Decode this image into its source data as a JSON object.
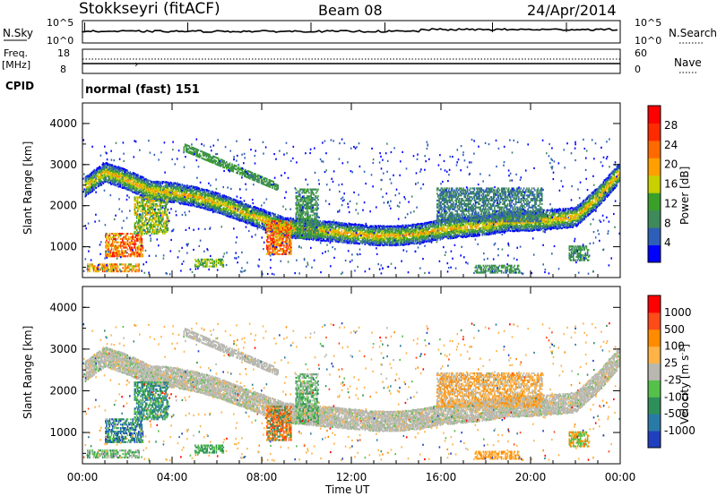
{
  "header": {
    "station": "Stokkseyri (fitACF)",
    "beam": "Beam 08",
    "date": "24/Apr/2014"
  },
  "strips": {
    "nsky_label": "N.Sky",
    "nsky_ticks": [
      "10^5",
      "10^0"
    ],
    "nsearch_label": "N.Search",
    "freq_label_1": "Freq.",
    "freq_label_2": "[MHz]",
    "freq_ticks": [
      "18",
      "8"
    ],
    "nave_ticks": [
      "60",
      "0"
    ],
    "nave_label": "Nave",
    "cpid_label": "CPID",
    "cpid_text": "normal (fast) 151"
  },
  "colors": {
    "power_scale": [
      "#0000ff",
      "#2e5fb8",
      "#3f8a5a",
      "#3aa02a",
      "#c8d000",
      "#ffa000",
      "#ff6a00",
      "#ff2a00",
      "#ff0000"
    ],
    "velocity_scale": [
      "#1f3fbf",
      "#2a7aa8",
      "#2f8f5a",
      "#55c04a",
      "#b8b8b0",
      "#ffb347",
      "#ff8c00",
      "#ff4a1a",
      "#ff0000"
    ]
  },
  "chart_data": [
    {
      "type": "heatmap",
      "panel": "power",
      "ylabel": "Slant Range [km]",
      "yticks": [
        "4000",
        "3000",
        "2000",
        "1000"
      ],
      "ylim": [
        250,
        4500
      ],
      "colorbar_label": "Power [dB]",
      "colorbar_ticks": [
        "28",
        "24",
        "20",
        "16",
        "12",
        "8",
        "4"
      ],
      "clim": [
        0,
        30
      ],
      "main_echo_band": {
        "time_h": [
          0,
          1,
          2,
          3,
          4,
          5,
          6,
          7,
          8,
          9,
          10,
          11,
          12,
          13,
          14,
          15,
          16,
          17,
          18,
          19,
          20,
          21,
          22,
          23,
          24
        ],
        "range_km": [
          2400,
          2800,
          2600,
          2350,
          2300,
          2200,
          2050,
          1850,
          1650,
          1450,
          1400,
          1350,
          1300,
          1250,
          1250,
          1300,
          1400,
          1450,
          1500,
          1600,
          1600,
          1650,
          1700,
          2200,
          2800
        ]
      }
    },
    {
      "type": "heatmap",
      "panel": "velocity",
      "ylabel": "Slant Range [km]",
      "yticks": [
        "4000",
        "3000",
        "2000",
        "1000"
      ],
      "ylim": [
        250,
        4500
      ],
      "colorbar_label": "Velocity [m s",
      "colorbar_label_sup": "-1",
      "colorbar_label_end": "]",
      "colorbar_ticks": [
        "1000",
        "500",
        "100",
        "25",
        "-25",
        "-100",
        "-500",
        "-1000"
      ],
      "clim": [
        -1200,
        1200
      ],
      "xlabel": "Time UT",
      "xticks": [
        "00:00",
        "04:00",
        "08:00",
        "12:00",
        "16:00",
        "20:00",
        "00:00"
      ],
      "xlim": [
        0,
        24
      ]
    }
  ]
}
